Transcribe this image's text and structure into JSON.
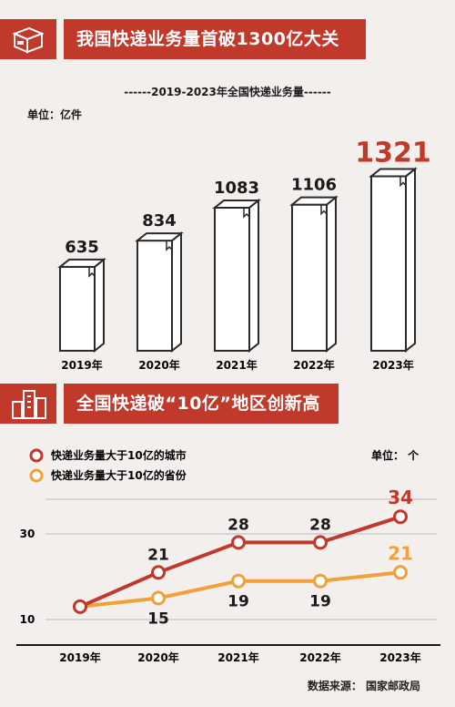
{
  "section1": {
    "title": "我国快递业务量首破1300亿大关"
  },
  "section2": {
    "title": "全国快递破“10亿”地区创新高"
  },
  "chart1": {
    "subtitle": "------2019-2023年全国快递业务量------",
    "unit": "单位：亿件"
  },
  "chart2": {
    "unit": "单位： 个"
  },
  "source": "数据来源： 国家邮政局",
  "colors": {
    "red": "#c0392b",
    "orange": "#f0a13c",
    "bg": "#f3efec",
    "highlight": "#c0392b"
  },
  "chart_data": [
    {
      "type": "bar",
      "title": "2019-2023年全国快递业务量",
      "ylabel": "单位：亿件",
      "categories": [
        "2019年",
        "2020年",
        "2021年",
        "2022年",
        "2023年"
      ],
      "values": [
        635,
        834,
        1083,
        1106,
        1321
      ],
      "ylim": [
        0,
        1400
      ]
    },
    {
      "type": "line",
      "categories": [
        "2019年",
        "2020年",
        "2021年",
        "2022年",
        "2023年"
      ],
      "ylabel": "单位： 个",
      "yticks": [
        10,
        30
      ],
      "ylim": [
        0,
        40
      ],
      "series": [
        {
          "name": "快递业务量大于10亿的城市",
          "values": [
            13,
            21,
            28,
            28,
            34
          ],
          "labels": [
            "",
            "21",
            "28",
            "28",
            "34"
          ],
          "color": "#c0392b"
        },
        {
          "name": "快递业务量大于10亿的省份",
          "values": [
            13,
            15,
            19,
            19,
            21
          ],
          "labels": [
            "",
            "15",
            "19",
            "19",
            "21"
          ],
          "color": "#f0a13c"
        }
      ],
      "legend": "top-left"
    }
  ]
}
